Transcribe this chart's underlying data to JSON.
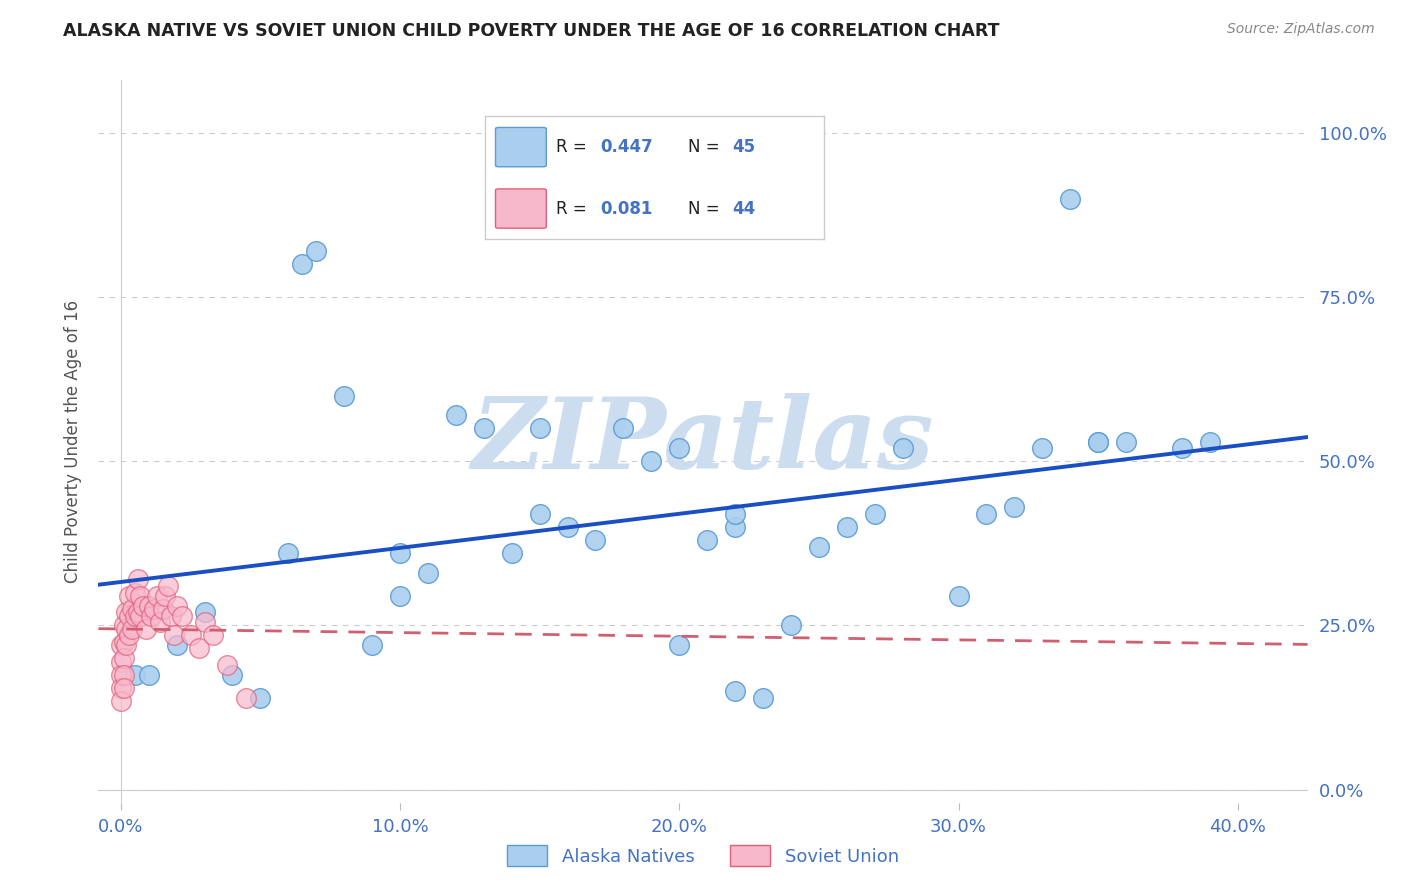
{
  "title": "ALASKA NATIVE VS SOVIET UNION CHILD POVERTY UNDER THE AGE OF 16 CORRELATION CHART",
  "source": "Source: ZipAtlas.com",
  "ylabel": "Child Poverty Under the Age of 16",
  "xlabel_vals": [
    0.0,
    0.1,
    0.2,
    0.3,
    0.4
  ],
  "ylabel_vals": [
    0.0,
    0.25,
    0.5,
    0.75,
    1.0
  ],
  "xlim": [
    -0.008,
    0.425
  ],
  "ylim": [
    -0.02,
    1.08
  ],
  "alaska_R": 0.447,
  "alaska_N": 45,
  "soviet_R": 0.081,
  "soviet_N": 44,
  "alaska_color": "#aacfee",
  "alaska_edge": "#5b9bd5",
  "soviet_color": "#f8b8cc",
  "soviet_edge": "#e0607a",
  "trendline_alaska_color": "#1a4fc4",
  "trendline_soviet_color": "#d06070",
  "alaska_x": [
    0.005,
    0.01,
    0.02,
    0.03,
    0.04,
    0.05,
    0.06,
    0.065,
    0.07,
    0.08,
    0.09,
    0.1,
    0.1,
    0.11,
    0.12,
    0.13,
    0.14,
    0.15,
    0.16,
    0.17,
    0.18,
    0.19,
    0.2,
    0.21,
    0.22,
    0.23,
    0.24,
    0.25,
    0.26,
    0.27,
    0.28,
    0.3,
    0.31,
    0.32,
    0.33,
    0.34,
    0.35,
    0.36,
    0.15,
    0.2,
    0.22,
    0.22,
    0.35,
    0.38,
    0.39
  ],
  "alaska_y": [
    0.175,
    0.175,
    0.22,
    0.27,
    0.175,
    0.14,
    0.36,
    0.8,
    0.82,
    0.6,
    0.22,
    0.36,
    0.295,
    0.33,
    0.57,
    0.55,
    0.36,
    0.42,
    0.4,
    0.38,
    0.55,
    0.5,
    0.22,
    0.38,
    0.4,
    0.14,
    0.25,
    0.37,
    0.4,
    0.42,
    0.52,
    0.295,
    0.42,
    0.43,
    0.52,
    0.9,
    0.53,
    0.53,
    0.55,
    0.52,
    0.42,
    0.15,
    0.53,
    0.52,
    0.53
  ],
  "soviet_x": [
    0.0,
    0.0,
    0.0,
    0.0,
    0.0,
    0.001,
    0.001,
    0.001,
    0.001,
    0.001,
    0.002,
    0.002,
    0.002,
    0.003,
    0.003,
    0.003,
    0.004,
    0.004,
    0.005,
    0.005,
    0.006,
    0.006,
    0.007,
    0.007,
    0.008,
    0.009,
    0.01,
    0.011,
    0.012,
    0.013,
    0.014,
    0.015,
    0.016,
    0.017,
    0.018,
    0.019,
    0.02,
    0.022,
    0.025,
    0.028,
    0.03,
    0.033,
    0.038,
    0.045
  ],
  "soviet_y": [
    0.22,
    0.195,
    0.175,
    0.155,
    0.135,
    0.25,
    0.225,
    0.2,
    0.175,
    0.155,
    0.27,
    0.245,
    0.22,
    0.295,
    0.265,
    0.235,
    0.275,
    0.245,
    0.3,
    0.265,
    0.32,
    0.27,
    0.295,
    0.265,
    0.28,
    0.245,
    0.28,
    0.265,
    0.275,
    0.295,
    0.255,
    0.275,
    0.295,
    0.31,
    0.265,
    0.235,
    0.28,
    0.265,
    0.235,
    0.215,
    0.255,
    0.235,
    0.19,
    0.14
  ],
  "legend_alaska": "Alaska Natives",
  "legend_soviet": "Soviet Union",
  "grid_color": "#cccccc",
  "background_color": "#ffffff",
  "label_color": "#4472c4",
  "watermark_text": "ZIPatlas",
  "watermark_color": "#ccddf0"
}
